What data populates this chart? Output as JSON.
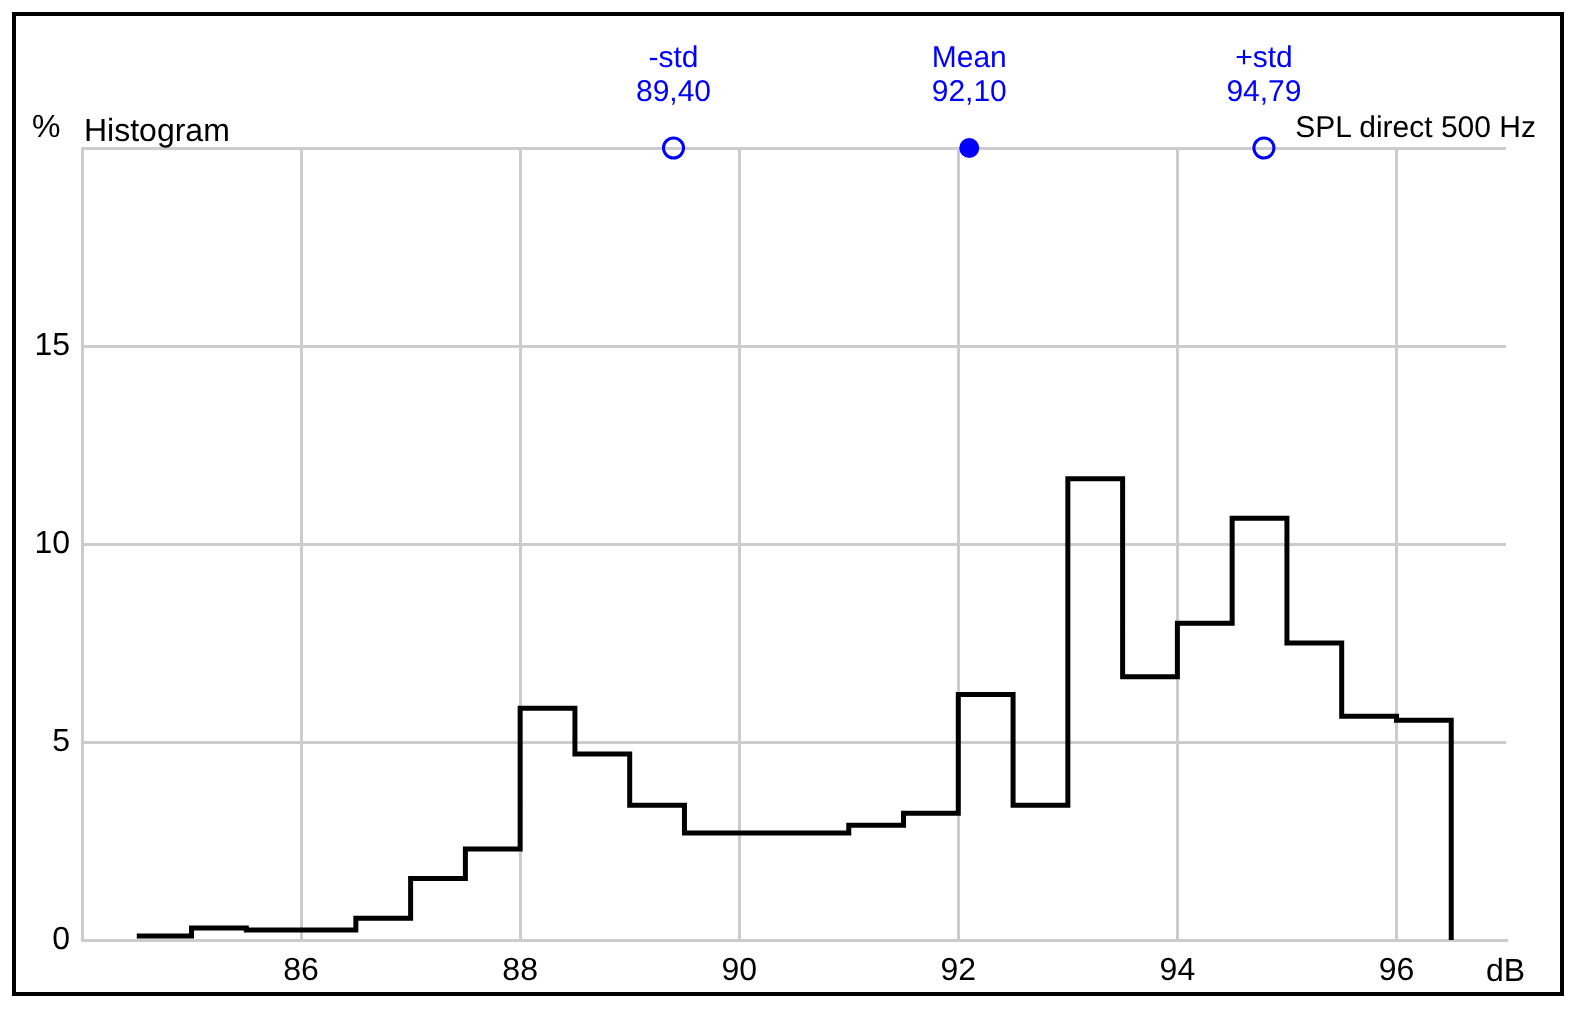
{
  "chart_data": {
    "type": "histogram",
    "title": "Histogram",
    "subtitle": "SPL direct 500 Hz",
    "xlabel": "dB",
    "ylabel": "%",
    "bins": [
      84.5,
      85,
      85.5,
      86,
      86.5,
      87,
      87.5,
      88,
      88.5,
      89,
      89.5,
      90,
      90.5,
      91,
      91.5,
      92,
      92.5,
      93,
      93.5,
      94,
      94.5,
      95,
      95.5,
      96,
      96.5
    ],
    "values": [
      0.1,
      0.3,
      0.25,
      0.25,
      0.55,
      1.55,
      2.3,
      5.85,
      4.7,
      3.4,
      2.7,
      2.7,
      2.7,
      2.9,
      3.2,
      6.2,
      3.4,
      11.65,
      6.65,
      8.0,
      10.65,
      7.5,
      5.65,
      5.55
    ],
    "color": "#000000",
    "xlim": [
      84,
      97
    ],
    "xticks": [
      86,
      88,
      90,
      92,
      94,
      96
    ],
    "ylim": [
      0,
      20
    ],
    "yticks": [
      0,
      5,
      10,
      15,
      {
        "value": 20,
        "label": null
      }
    ],
    "grid": true,
    "annotations": [
      {
        "text": "-std\n89,40",
        "x": 89.4,
        "y": 20
      },
      {
        "text": "Mean\n92,10",
        "x": 92.1,
        "y": 20
      },
      {
        "text": "+std\n94,79",
        "x": 94.79,
        "y": 20
      }
    ]
  }
}
